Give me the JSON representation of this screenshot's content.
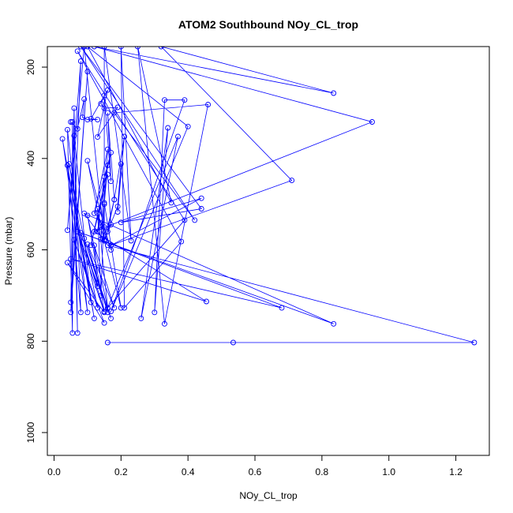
{
  "chart_data": {
    "type": "line",
    "title": "ATOM2 Southbound NOy_CL_trop",
    "xlabel": "NOy_CL_trop",
    "ylabel": "Pressure (mbar)",
    "xlim": [
      -0.02,
      1.3
    ],
    "ylim": [
      1050,
      155
    ],
    "y_reversed": true,
    "grid": false,
    "legend": "none",
    "color": "#0000ff",
    "x_ticks": [
      0.0,
      0.2,
      0.4,
      0.6,
      0.8,
      1.0,
      1.2
    ],
    "x_tick_labels": [
      "0.0",
      "0.2",
      "0.4",
      "0.6",
      "0.8",
      "1.0",
      "1.2"
    ],
    "y_ticks": [
      200,
      400,
      600,
      800,
      1000
    ],
    "y_tick_labels": [
      "200",
      "400",
      "600",
      "800",
      "1000"
    ],
    "series": [
      {
        "points": [
          [
            0.16,
            803
          ],
          [
            0.535,
            803
          ],
          [
            1.255,
            803
          ],
          [
            0.16,
            590
          ],
          [
            0.09,
            520
          ],
          [
            0.835,
            762
          ],
          [
            0.07,
            560
          ],
          [
            0.68,
            727
          ],
          [
            0.05,
            620
          ],
          [
            0.455,
            713
          ],
          [
            0.12,
            560
          ],
          [
            0.95,
            320
          ],
          [
            0.12,
            155
          ],
          [
            0.835,
            257
          ],
          [
            0.32,
            155
          ],
          [
            0.71,
            448
          ],
          [
            0.17,
            590
          ],
          [
            0.44,
            487
          ],
          [
            0.2,
            540
          ],
          [
            0.44,
            510
          ],
          [
            0.08,
            155
          ],
          [
            0.42,
            535
          ],
          [
            0.18,
            300
          ],
          [
            0.46,
            282
          ],
          [
            0.33,
            762
          ],
          [
            0.25,
            155
          ],
          [
            0.35,
            497
          ],
          [
            0.1,
            155
          ],
          [
            0.4,
            330
          ],
          [
            0.17,
            735
          ],
          [
            0.39,
            272
          ],
          [
            0.33,
            272
          ],
          [
            0.3,
            737
          ],
          [
            0.34,
            333
          ],
          [
            0.26,
            750
          ],
          [
            0.37,
            352
          ],
          [
            0.16,
            727
          ],
          [
            0.39,
            535
          ],
          [
            0.07,
            165
          ],
          [
            0.38,
            582
          ],
          [
            0.21,
            727
          ],
          [
            0.2,
            155
          ],
          [
            0.23,
            580
          ],
          [
            0.15,
            155
          ],
          [
            0.15,
            578
          ],
          [
            0.09,
            155
          ],
          [
            0.04,
            557
          ],
          [
            0.08,
            187
          ],
          [
            0.05,
            737
          ],
          [
            0.1,
            210
          ],
          [
            0.05,
            715
          ],
          [
            0.06,
            290
          ],
          [
            0.07,
            782
          ],
          [
            0.055,
            320
          ],
          [
            0.055,
            782
          ],
          [
            0.04,
            337
          ],
          [
            0.1,
            737
          ],
          [
            0.025,
            357
          ],
          [
            0.11,
            715
          ],
          [
            0.06,
            350
          ],
          [
            0.08,
            737
          ],
          [
            0.04,
            415
          ],
          [
            0.12,
            750
          ],
          [
            0.045,
            412
          ],
          [
            0.13,
            727
          ],
          [
            0.06,
            578
          ],
          [
            0.15,
            760
          ],
          [
            0.04,
            628
          ],
          [
            0.15,
            737
          ],
          [
            0.07,
            560
          ],
          [
            0.17,
            750
          ],
          [
            0.09,
            575
          ],
          [
            0.16,
            737
          ],
          [
            0.1,
            588
          ],
          [
            0.18,
            727
          ],
          [
            0.12,
            590
          ],
          [
            0.13,
            680
          ],
          [
            0.08,
            563
          ],
          [
            0.15,
            735
          ],
          [
            0.1,
            525
          ],
          [
            0.16,
            727
          ],
          [
            0.13,
            510
          ],
          [
            0.14,
            700
          ],
          [
            0.15,
            497
          ],
          [
            0.2,
            727
          ],
          [
            0.13,
            520
          ],
          [
            0.17,
            600
          ],
          [
            0.15,
            550
          ],
          [
            0.1,
            405
          ],
          [
            0.14,
            550
          ],
          [
            0.13,
            560
          ],
          [
            0.15,
            440
          ],
          [
            0.14,
            577
          ],
          [
            0.16,
            415
          ],
          [
            0.15,
            500
          ],
          [
            0.16,
            380
          ],
          [
            0.12,
            520
          ],
          [
            0.17,
            387
          ],
          [
            0.11,
            590
          ],
          [
            0.16,
            435
          ],
          [
            0.17,
            545
          ],
          [
            0.15,
            580
          ],
          [
            0.18,
            490
          ],
          [
            0.16,
            560
          ],
          [
            0.19,
            505
          ],
          [
            0.2,
            412
          ],
          [
            0.19,
            517
          ],
          [
            0.21,
            352
          ],
          [
            0.18,
            490
          ],
          [
            0.16,
            300
          ],
          [
            0.17,
            450
          ],
          [
            0.15,
            262
          ],
          [
            0.14,
            280
          ],
          [
            0.15,
            290
          ],
          [
            0.19,
            288
          ],
          [
            0.13,
            353
          ],
          [
            0.16,
            250
          ],
          [
            0.11,
            313
          ],
          [
            0.13,
            315
          ],
          [
            0.1,
            315
          ],
          [
            0.085,
            310
          ],
          [
            0.09,
            270
          ],
          [
            0.07,
            335
          ],
          [
            0.05,
            320
          ]
        ]
      }
    ]
  }
}
